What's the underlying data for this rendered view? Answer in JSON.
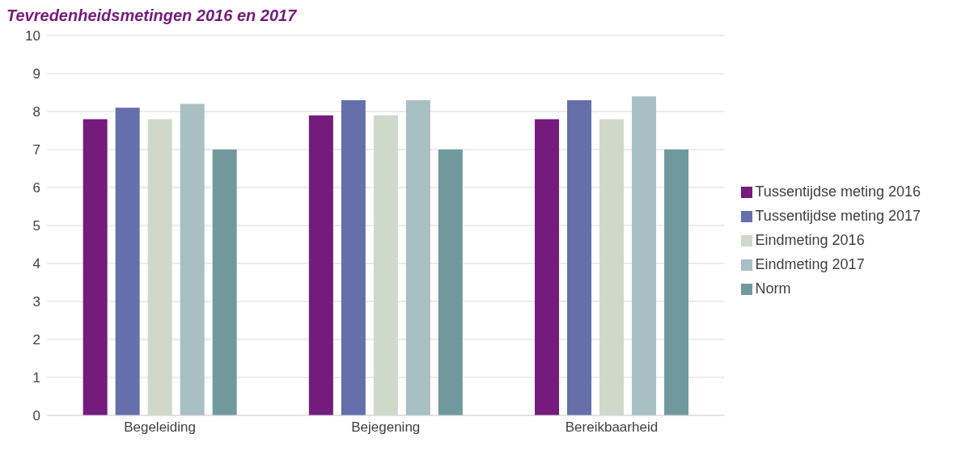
{
  "chart_data": {
    "type": "bar",
    "title": "Tevredenheidsmetingen 2016 en 2017",
    "categories": [
      "Begeleiding",
      "Bejegening",
      "Bereikbaarheid"
    ],
    "series": [
      {
        "name": "Tussentijdse meting 2016",
        "color": "#741b7c",
        "values": [
          7.8,
          7.9,
          7.8
        ]
      },
      {
        "name": "Tussentijdse meting 2017",
        "color": "#646fac",
        "values": [
          8.1,
          8.3,
          8.3
        ]
      },
      {
        "name": "Eindmeting 2016",
        "color": "#cfd9c9",
        "values": [
          7.8,
          7.9,
          7.8
        ]
      },
      {
        "name": "Eindmeting 2017",
        "color": "#a8bfc4",
        "values": [
          8.2,
          8.3,
          8.4
        ]
      },
      {
        "name": "Norm",
        "color": "#70999e",
        "values": [
          7,
          7,
          7
        ]
      }
    ],
    "ylim": [
      0,
      10
    ],
    "yticks": [
      0,
      1,
      2,
      3,
      4,
      5,
      6,
      7,
      8,
      9,
      10
    ],
    "grid": "y",
    "legend": "right"
  }
}
